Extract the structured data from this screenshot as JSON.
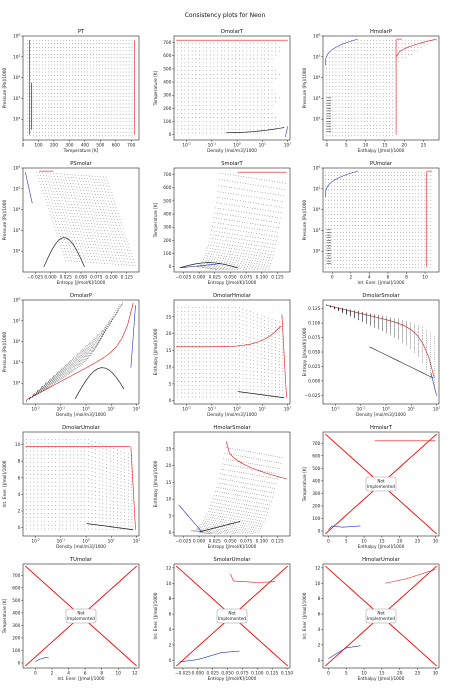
{
  "suptitle": "Consistency plots for Neon",
  "not_implemented_text": [
    "Not",
    "Implemented"
  ],
  "colors": {
    "phase": "#222222",
    "red": "#ee1111",
    "blue": "#2233cc",
    "cross": "#ff0000"
  },
  "chart_data": [
    {
      "title": "PT",
      "type": "scatter",
      "xlabel": "Temperature [K]",
      "ylabel": "Pressure [Pa]/1000",
      "xlim": [
        0,
        750
      ],
      "ylim": [
        1,
        6
      ],
      "xlog": false,
      "ylog": true,
      "xticks": [
        {
          "v": 0,
          "t": "0"
        },
        {
          "v": 100,
          "t": "100"
        },
        {
          "v": 200,
          "t": "200"
        },
        {
          "v": 300,
          "t": "300"
        },
        {
          "v": 400,
          "t": "400"
        },
        {
          "v": 500,
          "t": "500"
        },
        {
          "v": 600,
          "t": "600"
        },
        {
          "v": 700,
          "t": "700"
        }
      ],
      "yticks": [
        {
          "v": 2,
          "t": "10^2"
        },
        {
          "v": 3,
          "t": "10^3"
        },
        {
          "v": 4,
          "t": "10^4"
        },
        {
          "v": 5,
          "t": "10^5"
        },
        {
          "v": 6,
          "t": "10^6"
        }
      ],
      "variant": "pt"
    },
    {
      "title": "DmolarT",
      "type": "scatter",
      "xlabel": "Density [mol/m3]/1000",
      "ylabel": "Temperature [K]",
      "xlim": [
        -2.5,
        2.1
      ],
      "ylim": [
        -40,
        750
      ],
      "xlog": true,
      "ylog": false,
      "xticks": [
        {
          "v": -2,
          "t": "10^-2"
        },
        {
          "v": -1,
          "t": "10^-1"
        },
        {
          "v": 0,
          "t": "10^0"
        },
        {
          "v": 1,
          "t": "10^1"
        },
        {
          "v": 2,
          "t": "10^2"
        }
      ],
      "yticks": [
        {
          "v": 0,
          "t": "0"
        },
        {
          "v": 100,
          "t": "100"
        },
        {
          "v": 200,
          "t": "200"
        },
        {
          "v": 300,
          "t": "300"
        },
        {
          "v": 400,
          "t": "400"
        },
        {
          "v": 500,
          "t": "500"
        },
        {
          "v": 600,
          "t": "600"
        },
        {
          "v": 700,
          "t": "700"
        }
      ],
      "variant": "dt"
    },
    {
      "title": "HmolarP",
      "type": "scatter",
      "xlabel": "Enthalpy [J/mol]/1000",
      "ylabel": "Pressure [Pa]/1000",
      "xlim": [
        -1,
        29
      ],
      "ylim": [
        1,
        6
      ],
      "xlog": false,
      "ylog": true,
      "xticks": [
        {
          "v": 0,
          "t": "0"
        },
        {
          "v": 5,
          "t": "5"
        },
        {
          "v": 10,
          "t": "10"
        },
        {
          "v": 15,
          "t": "15"
        },
        {
          "v": 20,
          "t": "20"
        },
        {
          "v": 25,
          "t": "25"
        }
      ],
      "yticks": [
        {
          "v": 2,
          "t": "10^2"
        },
        {
          "v": 3,
          "t": "10^3"
        },
        {
          "v": 4,
          "t": "10^4"
        },
        {
          "v": 5,
          "t": "10^5"
        },
        {
          "v": 6,
          "t": "10^6"
        }
      ],
      "variant": "hp"
    },
    {
      "title": "PSmolar",
      "type": "scatter",
      "xlabel": "Entropy [J/mol/K]/1000",
      "ylabel": "Pressure [Pa]/1000",
      "xlim": [
        -0.045,
        0.145
      ],
      "ylim": [
        1,
        6
      ],
      "xlog": false,
      "ylog": true,
      "xticks": [
        {
          "v": -0.025,
          "t": "−0.025"
        },
        {
          "v": 0,
          "t": "0.000"
        },
        {
          "v": 0.025,
          "t": "0.025"
        },
        {
          "v": 0.05,
          "t": "0.050"
        },
        {
          "v": 0.075,
          "t": "0.075"
        },
        {
          "v": 0.1,
          "t": "0.100"
        },
        {
          "v": 0.125,
          "t": "0.125"
        }
      ],
      "yticks": [
        {
          "v": 2,
          "t": "10^2"
        },
        {
          "v": 3,
          "t": "10^3"
        },
        {
          "v": 4,
          "t": "10^4"
        },
        {
          "v": 5,
          "t": "10^5"
        },
        {
          "v": 6,
          "t": "10^6"
        }
      ],
      "variant": "ps"
    },
    {
      "title": "SmolarT",
      "type": "scatter",
      "xlabel": "Entropy [J/mol/K]/1000",
      "ylabel": "Temperature [K]",
      "xlim": [
        -0.04,
        0.145
      ],
      "ylim": [
        -40,
        750
      ],
      "xlog": false,
      "ylog": false,
      "xticks": [
        {
          "v": -0.025,
          "t": "−0.025"
        },
        {
          "v": 0,
          "t": "0.000"
        },
        {
          "v": 0.025,
          "t": "0.025"
        },
        {
          "v": 0.05,
          "t": "0.050"
        },
        {
          "v": 0.075,
          "t": "0.075"
        },
        {
          "v": 0.1,
          "t": "0.100"
        },
        {
          "v": 0.125,
          "t": "0.125"
        }
      ],
      "yticks": [
        {
          "v": 0,
          "t": "0"
        },
        {
          "v": 100,
          "t": "100"
        },
        {
          "v": 200,
          "t": "200"
        },
        {
          "v": 300,
          "t": "300"
        },
        {
          "v": 400,
          "t": "400"
        },
        {
          "v": 500,
          "t": "500"
        },
        {
          "v": 600,
          "t": "600"
        },
        {
          "v": 700,
          "t": "700"
        }
      ],
      "variant": "st"
    },
    {
      "title": "PUmolar",
      "type": "scatter",
      "xlabel": "Int. Ener. [J/mol]/1000",
      "ylabel": "Pressure [Pa]/1000",
      "xlim": [
        -1,
        11.5
      ],
      "ylim": [
        1,
        6
      ],
      "xlog": false,
      "ylog": true,
      "xticks": [
        {
          "v": 0,
          "t": "0"
        },
        {
          "v": 2,
          "t": "2"
        },
        {
          "v": 4,
          "t": "4"
        },
        {
          "v": 6,
          "t": "6"
        },
        {
          "v": 8,
          "t": "8"
        },
        {
          "v": 10,
          "t": "10"
        }
      ],
      "yticks": [
        {
          "v": 2,
          "t": "10^2"
        },
        {
          "v": 3,
          "t": "10^3"
        },
        {
          "v": 4,
          "t": "10^4"
        },
        {
          "v": 5,
          "t": "10^5"
        },
        {
          "v": 6,
          "t": "10^6"
        }
      ],
      "variant": "pu"
    },
    {
      "title": "DmolarP",
      "type": "scatter",
      "xlabel": "Density [mol/m3]/1000",
      "ylabel": "Pressure [Pa]/1000",
      "xlim": [
        -2.5,
        2.1
      ],
      "ylim": [
        1,
        6
      ],
      "xlog": true,
      "ylog": true,
      "xticks": [
        {
          "v": -2,
          "t": "10^-2"
        },
        {
          "v": -1,
          "t": "10^-1"
        },
        {
          "v": 0,
          "t": "10^0"
        },
        {
          "v": 1,
          "t": "10^1"
        },
        {
          "v": 2,
          "t": "10^2"
        }
      ],
      "yticks": [
        {
          "v": 2,
          "t": "10^2"
        },
        {
          "v": 3,
          "t": "10^3"
        },
        {
          "v": 4,
          "t": "10^4"
        },
        {
          "v": 5,
          "t": "10^5"
        },
        {
          "v": 6,
          "t": "10^6"
        }
      ],
      "variant": "dp"
    },
    {
      "title": "DmolarHmolar",
      "type": "scatter",
      "xlabel": "Density [mol/m3]/1000",
      "ylabel": "Enthalpy [J/mol]/1000",
      "xlim": [
        -2.5,
        2.1
      ],
      "ylim": [
        -1,
        30
      ],
      "xlog": true,
      "ylog": false,
      "xticks": [
        {
          "v": -2,
          "t": "10^-2"
        },
        {
          "v": -1,
          "t": "10^-1"
        },
        {
          "v": 0,
          "t": "10^0"
        },
        {
          "v": 1,
          "t": "10^1"
        },
        {
          "v": 2,
          "t": "10^2"
        }
      ],
      "yticks": [
        {
          "v": 0,
          "t": "0"
        },
        {
          "v": 5,
          "t": "5"
        },
        {
          "v": 10,
          "t": "10"
        },
        {
          "v": 15,
          "t": "15"
        },
        {
          "v": 20,
          "t": "20"
        },
        {
          "v": 25,
          "t": "25"
        }
      ],
      "variant": "dh"
    },
    {
      "title": "DmolarSmolar",
      "type": "scatter",
      "xlabel": "Density [mol/m3]/1000",
      "ylabel": "Entropy [J/mol/K]/1000",
      "xlim": [
        -2.5,
        2.1
      ],
      "ylim": [
        -0.04,
        0.14
      ],
      "xlog": true,
      "ylog": false,
      "xticks": [
        {
          "v": -2,
          "t": "10^-2"
        },
        {
          "v": -1,
          "t": "10^-1"
        },
        {
          "v": 0,
          "t": "10^0"
        },
        {
          "v": 1,
          "t": "10^1"
        },
        {
          "v": 2,
          "t": "10^2"
        }
      ],
      "yticks": [
        {
          "v": -0.025,
          "t": "−0.025"
        },
        {
          "v": 0,
          "t": "0.000"
        },
        {
          "v": 0.025,
          "t": "0.025"
        },
        {
          "v": 0.05,
          "t": "0.050"
        },
        {
          "v": 0.075,
          "t": "0.075"
        },
        {
          "v": 0.1,
          "t": "0.100"
        },
        {
          "v": 0.125,
          "t": "0.125"
        }
      ],
      "variant": "ds"
    },
    {
      "title": "DmolarUmolar",
      "type": "scatter",
      "xlabel": "Density [mol/m3]/1000",
      "ylabel": "Int. Ener. [J/mol]/1000",
      "xlim": [
        -2.5,
        2.1
      ],
      "ylim": [
        -1,
        11.5
      ],
      "xlog": true,
      "ylog": false,
      "xticks": [
        {
          "v": -2,
          "t": "10^-2"
        },
        {
          "v": -1,
          "t": "10^-1"
        },
        {
          "v": 0,
          "t": "10^0"
        },
        {
          "v": 1,
          "t": "10^1"
        },
        {
          "v": 2,
          "t": "10^2"
        }
      ],
      "yticks": [
        {
          "v": 0,
          "t": "0"
        },
        {
          "v": 2,
          "t": "2"
        },
        {
          "v": 4,
          "t": "4"
        },
        {
          "v": 6,
          "t": "6"
        },
        {
          "v": 8,
          "t": "8"
        },
        {
          "v": 10,
          "t": "10"
        }
      ],
      "variant": "du"
    },
    {
      "title": "HmolarSmolar",
      "type": "scatter",
      "xlabel": "Entropy [J/mol/K]/1000",
      "ylabel": "Enthalpy [J/mol]/1000",
      "xlim": [
        -0.04,
        0.145
      ],
      "ylim": [
        -1,
        30
      ],
      "xlog": false,
      "ylog": false,
      "xticks": [
        {
          "v": -0.025,
          "t": "−0.025"
        },
        {
          "v": 0,
          "t": "0.000"
        },
        {
          "v": 0.025,
          "t": "0.025"
        },
        {
          "v": 0.05,
          "t": "0.050"
        },
        {
          "v": 0.075,
          "t": "0.075"
        },
        {
          "v": 0.1,
          "t": "0.100"
        },
        {
          "v": 0.125,
          "t": "0.125"
        }
      ],
      "yticks": [
        {
          "v": 0,
          "t": "0"
        },
        {
          "v": 5,
          "t": "5"
        },
        {
          "v": 10,
          "t": "10"
        },
        {
          "v": 15,
          "t": "15"
        },
        {
          "v": 20,
          "t": "20"
        },
        {
          "v": 25,
          "t": "25"
        }
      ],
      "variant": "hs"
    },
    {
      "title": "HmolarT",
      "type": "scatter",
      "xlabel": "Enthalpy [J/mol]/1000",
      "ylabel": "Temperature [K]",
      "xlim": [
        -1.5,
        31
      ],
      "ylim": [
        -40,
        790
      ],
      "xlog": false,
      "ylog": false,
      "xticks": [
        {
          "v": 0,
          "t": "0"
        },
        {
          "v": 5,
          "t": "5"
        },
        {
          "v": 10,
          "t": "10"
        },
        {
          "v": 15,
          "t": "15"
        },
        {
          "v": 20,
          "t": "20"
        },
        {
          "v": 25,
          "t": "25"
        },
        {
          "v": 30,
          "t": "30"
        }
      ],
      "yticks": [
        {
          "v": 0,
          "t": "0"
        },
        {
          "v": 100,
          "t": "100"
        },
        {
          "v": 200,
          "t": "200"
        },
        {
          "v": 300,
          "t": "300"
        },
        {
          "v": 400,
          "t": "400"
        },
        {
          "v": 500,
          "t": "500"
        },
        {
          "v": 600,
          "t": "600"
        },
        {
          "v": 700,
          "t": "700"
        }
      ],
      "variant": "ni",
      "not_implemented": true,
      "series": [
        {
          "values": [
            [
              13,
              720
            ],
            [
              30,
              720
            ]
          ]
        },
        {
          "values": [
            [
              0,
              10
            ],
            [
              1,
              40
            ],
            [
              4,
              30
            ],
            [
              9,
              40
            ]
          ]
        }
      ]
    },
    {
      "title": "TUmolar",
      "type": "scatter",
      "xlabel": "Int. Ener. [J/mol]/1000",
      "ylabel": "Temperature [K]",
      "xlim": [
        -1.5,
        12.5
      ],
      "ylim": [
        -40,
        790
      ],
      "xlog": false,
      "ylog": false,
      "xticks": [
        {
          "v": 0,
          "t": "0"
        },
        {
          "v": 2,
          "t": "2"
        },
        {
          "v": 4,
          "t": "4"
        },
        {
          "v": 6,
          "t": "6"
        },
        {
          "v": 8,
          "t": "8"
        },
        {
          "v": 10,
          "t": "10"
        },
        {
          "v": 12,
          "t": "12"
        }
      ],
      "yticks": [
        {
          "v": 0,
          "t": "0"
        },
        {
          "v": 100,
          "t": "100"
        },
        {
          "v": 200,
          "t": "200"
        },
        {
          "v": 300,
          "t": "300"
        },
        {
          "v": 400,
          "t": "400"
        },
        {
          "v": 500,
          "t": "500"
        },
        {
          "v": 600,
          "t": "600"
        },
        {
          "v": 700,
          "t": "700"
        }
      ],
      "variant": "ni",
      "not_implemented": true,
      "series": [
        {
          "values": [
            [
              0,
              10
            ],
            [
              0.5,
              30
            ],
            [
              1.3,
              45
            ],
            [
              1.6,
              40
            ]
          ]
        }
      ]
    },
    {
      "title": "SmolarUmolar",
      "type": "scatter",
      "xlabel": "Entropy [J/mol/K]/1000",
      "ylabel": "Int. Ener. [J/mol]/1000",
      "xlim": [
        -0.04,
        0.155
      ],
      "ylim": [
        -1,
        12.5
      ],
      "xlog": false,
      "ylog": false,
      "xticks": [
        {
          "v": -0.025,
          "t": "−0.025"
        },
        {
          "v": 0,
          "t": "0.000"
        },
        {
          "v": 0.025,
          "t": "0.025"
        },
        {
          "v": 0.05,
          "t": "0.050"
        },
        {
          "v": 0.075,
          "t": "0.075"
        },
        {
          "v": 0.1,
          "t": "0.100"
        },
        {
          "v": 0.125,
          "t": "0.125"
        },
        {
          "v": 0.15,
          "t": "0.150"
        }
      ],
      "yticks": [
        {
          "v": 0,
          "t": "0"
        },
        {
          "v": 2,
          "t": "2"
        },
        {
          "v": 4,
          "t": "4"
        },
        {
          "v": 6,
          "t": "6"
        },
        {
          "v": 8,
          "t": "8"
        },
        {
          "v": 10,
          "t": "10"
        },
        {
          "v": 12,
          "t": "12"
        }
      ],
      "variant": "ni",
      "not_implemented": true,
      "series": [
        {
          "values": [
            [
              0.055,
              11.2
            ],
            [
              0.06,
              10.3
            ],
            [
              0.1,
              10.1
            ],
            [
              0.13,
              10.2
            ]
          ]
        },
        {
          "values": [
            [
              -0.03,
              -0.2
            ],
            [
              0,
              0.1
            ],
            [
              0.04,
              1.0
            ],
            [
              0.07,
              1.2
            ]
          ]
        }
      ]
    },
    {
      "title": "HmolarUmolar",
      "type": "scatter",
      "xlabel": "Enthalpy [J/mol]/1000",
      "ylabel": "Int. Ener. [J/mol]/1000",
      "xlim": [
        -1.5,
        31
      ],
      "ylim": [
        -1,
        12.5
      ],
      "xlog": false,
      "ylog": false,
      "xticks": [
        {
          "v": 0,
          "t": "0"
        },
        {
          "v": 5,
          "t": "5"
        },
        {
          "v": 10,
          "t": "10"
        },
        {
          "v": 15,
          "t": "15"
        },
        {
          "v": 20,
          "t": "20"
        },
        {
          "v": 25,
          "t": "25"
        },
        {
          "v": 30,
          "t": "30"
        }
      ],
      "yticks": [
        {
          "v": 0,
          "t": "0"
        },
        {
          "v": 2,
          "t": "2"
        },
        {
          "v": 4,
          "t": "4"
        },
        {
          "v": 6,
          "t": "6"
        },
        {
          "v": 8,
          "t": "8"
        },
        {
          "v": 10,
          "t": "10"
        },
        {
          "v": 12,
          "t": "12"
        }
      ],
      "variant": "ni",
      "not_implemented": true,
      "series": [
        {
          "values": [
            [
              16,
              10.0
            ],
            [
              22,
              10.6
            ],
            [
              30,
              11.8
            ]
          ]
        },
        {
          "values": [
            [
              0,
              0.2
            ],
            [
              2,
              0.8
            ],
            [
              5,
              1.6
            ],
            [
              9,
              1.9
            ]
          ]
        }
      ]
    }
  ]
}
